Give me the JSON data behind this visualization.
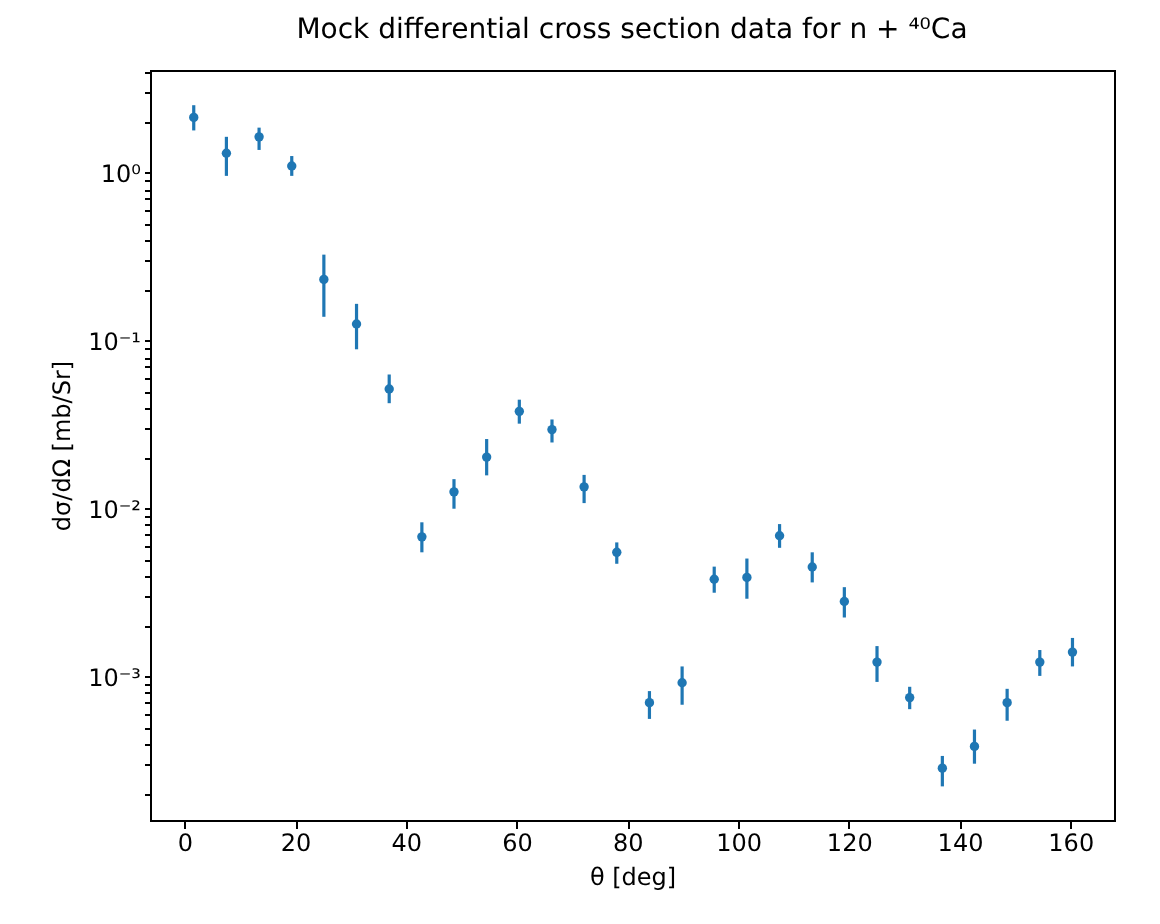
{
  "chart_data": {
    "type": "scatter",
    "title": "Mock differential cross section data for n + ⁴⁰Ca",
    "xlabel": "θ [deg]",
    "ylabel": "dσ/dΩ [mb/Sr]",
    "x": [
      1.7,
      7.6,
      13.5,
      19.4,
      25.2,
      31.1,
      37.0,
      42.9,
      48.7,
      54.6,
      60.5,
      66.4,
      72.2,
      78.1,
      84.0,
      89.9,
      95.7,
      101.6,
      107.5,
      113.4,
      119.2,
      125.1,
      131.0,
      136.9,
      142.7,
      148.6,
      154.5,
      160.4
    ],
    "values": [
      2.14,
      1.31,
      1.64,
      1.1,
      0.232,
      0.126,
      0.0516,
      0.0068,
      0.0126,
      0.0203,
      0.038,
      0.0296,
      0.0135,
      0.0055,
      0.0007,
      0.00092,
      0.0038,
      0.0039,
      0.0069,
      0.0045,
      0.0028,
      0.00122,
      0.00075,
      0.000285,
      0.000384,
      0.0007,
      0.00122,
      0.0014
    ],
    "errors": [
      [
        1.79,
        2.53
      ],
      [
        0.96,
        1.64
      ],
      [
        1.37,
        1.86
      ],
      [
        0.96,
        1.26
      ],
      [
        0.139,
        0.326
      ],
      [
        0.089,
        0.166
      ],
      [
        0.0425,
        0.063
      ],
      [
        0.0055,
        0.0083
      ],
      [
        0.01,
        0.015
      ],
      [
        0.0158,
        0.026
      ],
      [
        0.0321,
        0.0446
      ],
      [
        0.0248,
        0.034
      ],
      [
        0.0108,
        0.0159
      ],
      [
        0.0047,
        0.0063
      ],
      [
        0.00056,
        0.00082
      ],
      [
        0.00068,
        0.00115
      ],
      [
        0.00316,
        0.00452
      ],
      [
        0.00291,
        0.00505
      ],
      [
        0.00585,
        0.0081
      ],
      [
        0.00364,
        0.0055
      ],
      [
        0.00225,
        0.00341
      ],
      [
        0.00093,
        0.00152
      ],
      [
        0.00064,
        0.00087
      ],
      [
        0.000222,
        0.000337
      ],
      [
        0.000303,
        0.000484
      ],
      [
        0.000546,
        0.000846
      ],
      [
        0.00101,
        0.00144
      ],
      [
        0.00115,
        0.0017
      ]
    ],
    "color": "#1f77b4",
    "marker": "circle",
    "log": "y",
    "xlim": [
      -6.2,
      167.9
    ],
    "xticks": [
      0,
      20,
      40,
      60,
      80,
      100,
      120,
      140,
      160
    ],
    "ylim": [
      0.00014,
      4.1
    ],
    "yticks": [
      {
        "value": 0.0002,
        "label": null
      },
      {
        "value": 0.0003,
        "label": null
      },
      {
        "value": 0.0004,
        "label": null
      },
      {
        "value": 0.0005,
        "label": null
      },
      {
        "value": 0.0006,
        "label": null
      },
      {
        "value": 0.0007,
        "label": null
      },
      {
        "value": 0.0008,
        "label": null
      },
      {
        "value": 0.0009,
        "label": null
      },
      {
        "value": 0.001,
        "label": "10⁻³"
      },
      {
        "value": 0.002,
        "label": null
      },
      {
        "value": 0.003,
        "label": null
      },
      {
        "value": 0.004,
        "label": null
      },
      {
        "value": 0.005,
        "label": null
      },
      {
        "value": 0.006,
        "label": null
      },
      {
        "value": 0.007,
        "label": null
      },
      {
        "value": 0.008,
        "label": null
      },
      {
        "value": 0.009,
        "label": null
      },
      {
        "value": 0.01,
        "label": "10⁻²"
      },
      {
        "value": 0.02,
        "label": null
      },
      {
        "value": 0.03,
        "label": null
      },
      {
        "value": 0.04,
        "label": null
      },
      {
        "value": 0.05,
        "label": null
      },
      {
        "value": 0.06,
        "label": null
      },
      {
        "value": 0.07,
        "label": null
      },
      {
        "value": 0.08,
        "label": null
      },
      {
        "value": 0.09,
        "label": null
      },
      {
        "value": 0.1,
        "label": "10⁻¹"
      },
      {
        "value": 0.2,
        "label": null
      },
      {
        "value": 0.3,
        "label": null
      },
      {
        "value": 0.4,
        "label": null
      },
      {
        "value": 0.5,
        "label": null
      },
      {
        "value": 0.6,
        "label": null
      },
      {
        "value": 0.7,
        "label": null
      },
      {
        "value": 0.8,
        "label": null
      },
      {
        "value": 0.9,
        "label": null
      },
      {
        "value": 1,
        "label": "10⁰"
      },
      {
        "value": 2,
        "label": null
      },
      {
        "value": 3,
        "label": null
      },
      {
        "value": 4,
        "label": null
      }
    ]
  }
}
